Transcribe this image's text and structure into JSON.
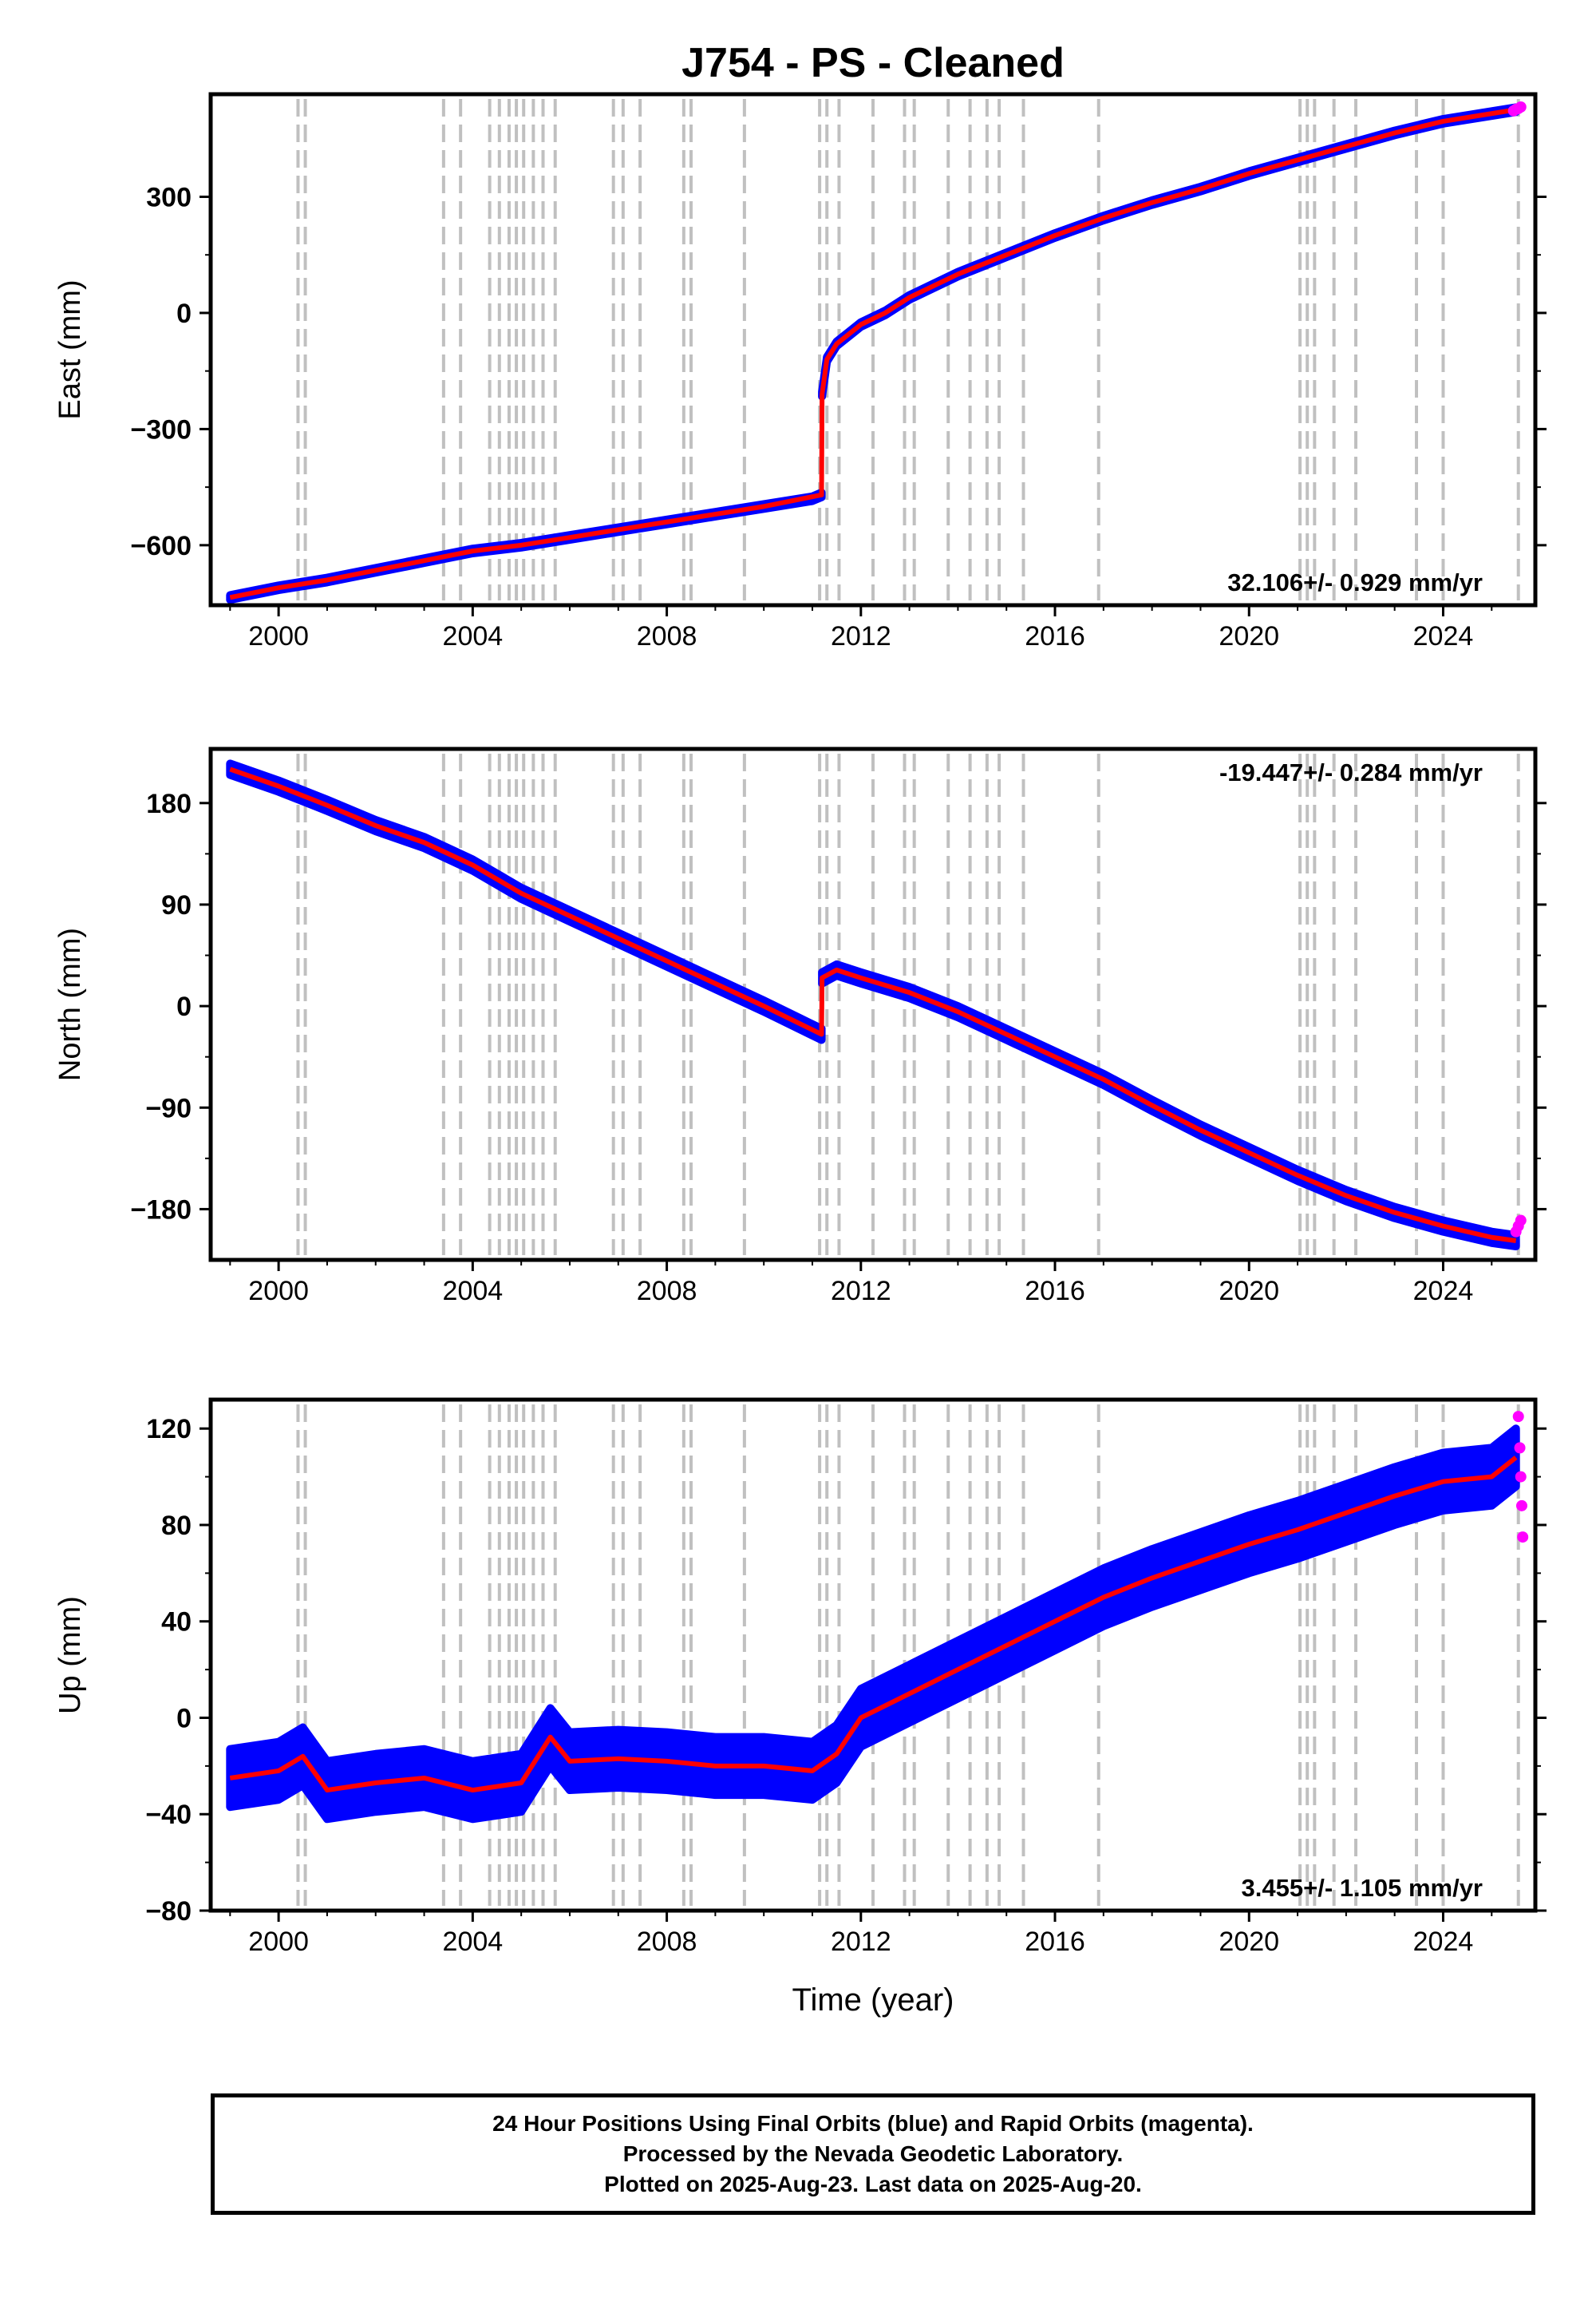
{
  "title": "J754  - PS - Cleaned",
  "xlabel": "Time (year)",
  "footer": {
    "line1": "24 Hour Positions Using Final Orbits (blue) and Rapid Orbits (magenta).",
    "line2": "Processed by the Nevada Geodetic Laboratory.",
    "line3": "Plotted on 2025-Aug-23. Last data on 2025-Aug-20."
  },
  "colors": {
    "final_orbits": "#0000ff",
    "rapid_orbits": "#ff00ff",
    "model_fit": "#ff0000",
    "event_lines": "#c0c0c0"
  },
  "chart_data": [
    {
      "type": "scatter",
      "component": "east",
      "ylabel": "East (mm)",
      "xlim": [
        1998.6,
        2025.9
      ],
      "ylim": [
        -755,
        565
      ],
      "x_ticks": [
        2000,
        2004,
        2008,
        2012,
        2016,
        2020,
        2024
      ],
      "y_ticks": [
        -600,
        -300,
        0,
        300
      ],
      "y_tick_labels": [
        "−600",
        "−300",
        "0",
        "300"
      ],
      "rate_label": "32.106+/- 0.929 mm/yr",
      "rate_position": "bottom-right",
      "scatter_half_width": 6,
      "series": [
        {
          "name": "Final Orbits",
          "color": "#0000ff",
          "x": [
            1999.0,
            2000.0,
            2001.0,
            2002.0,
            2003.0,
            2004.0,
            2005.0,
            2006.0,
            2007.0,
            2008.0,
            2009.0,
            2010.0,
            2011.0,
            2011.19
          ],
          "y": [
            -735,
            -710,
            -690,
            -665,
            -640,
            -615,
            -600,
            -580,
            -560,
            -540,
            -520,
            -500,
            -480,
            -470
          ]
        },
        {
          "name": "Final Orbits",
          "color": "#0000ff",
          "x": [
            2011.2,
            2011.3,
            2011.5,
            2011.8,
            2012.0,
            2012.5,
            2013.0,
            2014.0,
            2015.0,
            2016.0,
            2017.0,
            2018.0,
            2019.0,
            2020.0,
            2021.0,
            2022.0,
            2023.0,
            2024.0,
            2025.5
          ],
          "y": [
            -210,
            -120,
            -80,
            -50,
            -30,
            0,
            40,
            100,
            150,
            200,
            245,
            285,
            320,
            360,
            395,
            430,
            465,
            495,
            525
          ]
        }
      ],
      "model_fit": {
        "name": "Model",
        "color": "#ff0000",
        "x": [
          1999.0,
          2000.0,
          2001.0,
          2002.0,
          2003.0,
          2004.0,
          2005.0,
          2006.0,
          2007.0,
          2008.0,
          2009.0,
          2010.0,
          2011.19,
          2011.2,
          2011.3,
          2011.5,
          2011.8,
          2012.0,
          2012.5,
          2013.0,
          2014.0,
          2015.0,
          2016.0,
          2017.0,
          2018.0,
          2019.0,
          2020.0,
          2021.0,
          2022.0,
          2023.0,
          2024.0,
          2025.5
        ],
        "y": [
          -735,
          -710,
          -690,
          -665,
          -640,
          -615,
          -600,
          -580,
          -560,
          -540,
          -520,
          -500,
          -470,
          -210,
          -120,
          -80,
          -50,
          -30,
          0,
          40,
          100,
          150,
          200,
          245,
          285,
          320,
          360,
          395,
          430,
          465,
          495,
          525
        ]
      },
      "rapid_points": {
        "x": [
          2025.45,
          2025.5,
          2025.55,
          2025.6
        ],
        "y": [
          522,
          526,
          528,
          532
        ]
      }
    },
    {
      "type": "scatter",
      "component": "north",
      "ylabel": "North (mm)",
      "xlim": [
        1998.6,
        2025.9
      ],
      "ylim": [
        -225,
        228
      ],
      "x_ticks": [
        2000,
        2004,
        2008,
        2012,
        2016,
        2020,
        2024
      ],
      "y_ticks": [
        -180,
        -90,
        0,
        90,
        180
      ],
      "y_tick_labels": [
        "−180",
        "−90",
        "0",
        "90",
        "180"
      ],
      "rate_label": "-19.447+/- 0.284 mm/yr",
      "rate_position": "top-right",
      "scatter_half_width": 5,
      "series": [
        {
          "name": "Final Orbits",
          "color": "#0000ff",
          "x": [
            1999.0,
            2000.0,
            2001.0,
            2002.0,
            2003.0,
            2004.0,
            2005.0,
            2006.0,
            2007.0,
            2008.0,
            2009.0,
            2010.0,
            2011.19
          ],
          "y": [
            210,
            195,
            178,
            160,
            145,
            125,
            100,
            80,
            60,
            40,
            20,
            0,
            -25
          ]
        },
        {
          "name": "Final Orbits",
          "color": "#0000ff",
          "x": [
            2011.2,
            2011.5,
            2012.0,
            2013.0,
            2014.0,
            2015.0,
            2016.0,
            2017.0,
            2018.0,
            2019.0,
            2020.0,
            2021.0,
            2022.0,
            2023.0,
            2024.0,
            2025.0,
            2025.5
          ],
          "y": [
            25,
            32,
            25,
            12,
            -5,
            -25,
            -45,
            -65,
            -88,
            -110,
            -130,
            -150,
            -168,
            -183,
            -195,
            -205,
            -208
          ]
        }
      ],
      "model_fit": {
        "name": "Model",
        "color": "#ff0000",
        "x": [
          1999.0,
          2000.0,
          2001.0,
          2002.0,
          2003.0,
          2004.0,
          2005.0,
          2006.0,
          2007.0,
          2008.0,
          2009.0,
          2010.0,
          2011.19,
          2011.2,
          2011.5,
          2012.0,
          2013.0,
          2014.0,
          2015.0,
          2016.0,
          2017.0,
          2018.0,
          2019.0,
          2020.0,
          2021.0,
          2022.0,
          2023.0,
          2024.0,
          2025.0,
          2025.5
        ],
        "y": [
          210,
          195,
          178,
          160,
          145,
          125,
          100,
          80,
          60,
          40,
          20,
          0,
          -25,
          25,
          32,
          25,
          12,
          -5,
          -25,
          -45,
          -65,
          -88,
          -110,
          -130,
          -150,
          -168,
          -183,
          -195,
          -205,
          -208
        ]
      },
      "rapid_points": {
        "x": [
          2025.5,
          2025.55,
          2025.6
        ],
        "y": [
          -200,
          -195,
          -190
        ]
      }
    },
    {
      "type": "scatter",
      "component": "up",
      "ylabel": "Up (mm)",
      "xlim": [
        1998.6,
        2025.9
      ],
      "ylim": [
        -80,
        132
      ],
      "x_ticks": [
        2000,
        2004,
        2008,
        2012,
        2016,
        2020,
        2024
      ],
      "y_ticks": [
        -80,
        -40,
        0,
        40,
        80,
        120
      ],
      "y_tick_labels": [
        "−80",
        "−40",
        "0",
        "40",
        "80",
        "120"
      ],
      "rate_label": "3.455+/- 1.105 mm/yr",
      "rate_position": "bottom-right",
      "scatter_half_width": 12,
      "series": [
        {
          "name": "Final Orbits",
          "color": "#0000ff",
          "x": [
            1999.0,
            2000.0,
            2000.5,
            2001.0,
            2002.0,
            2003.0,
            2004.0,
            2005.0,
            2005.6,
            2006.0,
            2007.0,
            2008.0,
            2009.0,
            2010.0,
            2011.0,
            2011.5,
            2012.0,
            2013.0,
            2014.0,
            2015.0,
            2016.0,
            2017.0,
            2018.0,
            2019.0,
            2020.0,
            2021.0,
            2022.0,
            2023.0,
            2024.0,
            2025.0,
            2025.5
          ],
          "y": [
            -25,
            -22,
            -16,
            -30,
            -27,
            -25,
            -30,
            -27,
            -8,
            -18,
            -17,
            -18,
            -20,
            -20,
            -22,
            -15,
            0,
            10,
            20,
            30,
            40,
            50,
            58,
            65,
            72,
            78,
            85,
            92,
            98,
            100,
            108
          ]
        }
      ],
      "model_fit": {
        "name": "Model",
        "color": "#ff0000",
        "x": [
          1999.0,
          2000.0,
          2000.5,
          2001.0,
          2002.0,
          2003.0,
          2004.0,
          2005.0,
          2005.6,
          2006.0,
          2007.0,
          2008.0,
          2009.0,
          2010.0,
          2011.0,
          2011.5,
          2012.0,
          2013.0,
          2014.0,
          2015.0,
          2016.0,
          2017.0,
          2018.0,
          2019.0,
          2020.0,
          2021.0,
          2022.0,
          2023.0,
          2024.0,
          2025.0,
          2025.5
        ],
        "y": [
          -25,
          -22,
          -16,
          -30,
          -27,
          -25,
          -30,
          -27,
          -8,
          -18,
          -17,
          -18,
          -20,
          -20,
          -22,
          -15,
          0,
          10,
          20,
          30,
          40,
          50,
          58,
          65,
          72,
          78,
          85,
          92,
          98,
          100,
          108
        ]
      },
      "rapid_points": {
        "x": [
          2025.55,
          2025.58,
          2025.6,
          2025.62,
          2025.64
        ],
        "y": [
          125,
          112,
          100,
          88,
          75
        ]
      }
    }
  ],
  "event_lines": [
    2000.4,
    2000.55,
    2003.4,
    2003.75,
    2004.35,
    2004.55,
    2004.75,
    2004.9,
    2005.05,
    2005.25,
    2005.45,
    2005.7,
    2006.9,
    2007.1,
    2007.45,
    2008.35,
    2008.5,
    2009.6,
    2011.15,
    2011.3,
    2011.55,
    2012.25,
    2012.9,
    2013.1,
    2013.8,
    2014.25,
    2014.6,
    2014.85,
    2015.35,
    2016.9,
    2021.05,
    2021.2,
    2021.35,
    2021.75,
    2022.2,
    2023.45,
    2024.0,
    2025.55
  ]
}
